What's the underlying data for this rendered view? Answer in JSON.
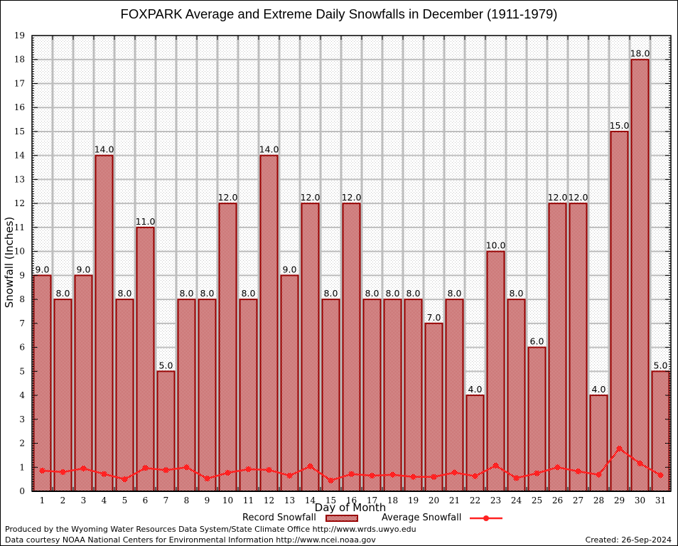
{
  "chart_data": {
    "type": "bar",
    "title": "FOXPARK Average and Extreme Daily Snowfalls in December (1911-1979)",
    "xlabel": "Day of Month",
    "ylabel": "Snowfall (Inches)",
    "ylim": [
      0,
      19
    ],
    "yticks": [
      0,
      1,
      2,
      3,
      4,
      5,
      6,
      7,
      8,
      9,
      10,
      11,
      12,
      13,
      14,
      15,
      16,
      17,
      18,
      19
    ],
    "grid": true,
    "legend_position": "bottom-center",
    "categories": [
      "1",
      "2",
      "3",
      "4",
      "5",
      "6",
      "7",
      "8",
      "9",
      "10",
      "11",
      "12",
      "13",
      "14",
      "15",
      "16",
      "17",
      "18",
      "19",
      "20",
      "21",
      "22",
      "23",
      "24",
      "25",
      "26",
      "27",
      "28",
      "29",
      "30",
      "31"
    ],
    "series": [
      {
        "name": "Record Snowfall",
        "kind": "bar",
        "color": "#990000",
        "values": [
          9.0,
          8.0,
          9.0,
          14.0,
          8.0,
          11.0,
          5.0,
          8.0,
          8.0,
          12.0,
          8.0,
          14.0,
          9.0,
          12.0,
          8.0,
          12.0,
          8.0,
          8.0,
          8.0,
          7.0,
          8.0,
          4.0,
          10.0,
          8.0,
          6.0,
          12.0,
          12.0,
          4.0,
          15.0,
          18.0,
          5.0
        ],
        "labels": [
          "9.0",
          "8.0",
          "9.0",
          "14.0",
          "8.0",
          "11.0",
          "5.0",
          "8.0",
          "8.0",
          "12.0",
          "8.0",
          "14.0",
          "9.0",
          "12.0",
          "8.0",
          "12.0",
          "8.0",
          "8.0",
          "8.0",
          "7.0",
          "8.0",
          "4.0",
          "10.0",
          "8.0",
          "6.0",
          "12.0",
          "12.0",
          "4.0",
          "15.0",
          "18.0",
          "5.0"
        ]
      },
      {
        "name": "Average Snowfall",
        "kind": "line",
        "color": "#ff2222",
        "values": [
          0.86,
          0.8,
          0.95,
          0.72,
          0.5,
          0.97,
          0.88,
          1.0,
          0.53,
          0.77,
          0.92,
          0.89,
          0.65,
          1.04,
          0.45,
          0.72,
          0.65,
          0.69,
          0.6,
          0.6,
          0.78,
          0.63,
          1.07,
          0.55,
          0.75,
          1.0,
          0.83,
          0.69,
          1.78,
          1.16,
          0.67
        ]
      }
    ]
  },
  "footer": {
    "line1": "Produced by the Wyoming Water Resources Data System/State Climate Office http://www.wrds.uwyo.edu",
    "line2": "Data courtesy NOAA National Centers for Environmental Information http://www.ncei.noaa.gov",
    "created": "Created: 26-Sep-2024"
  }
}
